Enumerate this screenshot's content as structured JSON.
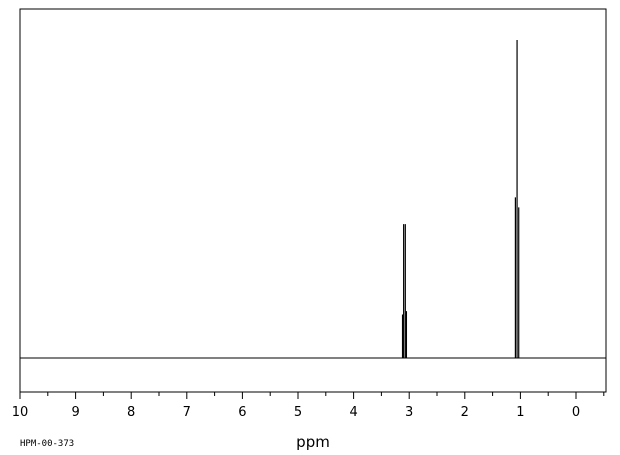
{
  "chart_data": {
    "type": "line",
    "xlabel": "ppm",
    "x_reversed": true,
    "xlim": [
      10,
      -0.5
    ],
    "ylim": [
      0,
      1
    ],
    "major_ticks": [
      10,
      9,
      8,
      7,
      6,
      5,
      4,
      3,
      2,
      1,
      0
    ],
    "tick_labels": [
      "10",
      "9",
      "8",
      "7",
      "6",
      "5",
      "4",
      "3",
      "2",
      "1",
      "0"
    ],
    "minor_tick_step": 0.5,
    "grid": false,
    "series": [
      {
        "peaks": [
          {
            "ppm": 3.12,
            "intensity": 0.13
          },
          {
            "ppm": 3.1,
            "intensity": 0.4
          },
          {
            "ppm": 3.07,
            "intensity": 0.4
          },
          {
            "ppm": 3.05,
            "intensity": 0.14
          },
          {
            "ppm": 1.09,
            "intensity": 0.48
          },
          {
            "ppm": 1.06,
            "intensity": 0.95
          },
          {
            "ppm": 1.03,
            "intensity": 0.45
          }
        ]
      }
    ]
  },
  "footer_code": "HPM-00-373",
  "colors": {
    "line": "#000000",
    "background": "#ffffff"
  }
}
